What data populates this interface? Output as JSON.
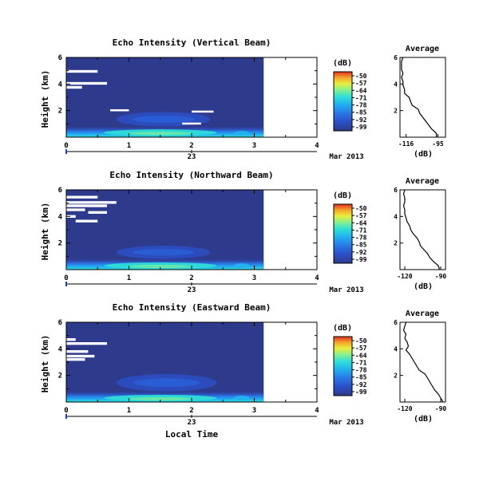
{
  "chart_data": [
    {
      "type": "heatmap",
      "title": "Echo Intensity (Vertical Beam)",
      "ylabel": "Height (km)",
      "xlim": [
        0,
        4
      ],
      "ylim": [
        0,
        6
      ],
      "x_ticks": [
        "0",
        "1",
        "2",
        "3",
        "4"
      ],
      "y_ticks": [
        "2",
        "4",
        "6"
      ],
      "date_label": "23",
      "month_label": "Mar 2013",
      "data_end_x": 3.15,
      "colorbar": {
        "unit": "(dB)",
        "levels": [
          "-50",
          "-57",
          "-64",
          "-71",
          "-78",
          "-85",
          "-92",
          "-99"
        ]
      },
      "background_value_db": -99,
      "high_echo_features": [
        {
          "x": [
            0.0,
            3.15
          ],
          "y": [
            0.0,
            0.8
          ],
          "level": "low echo boundary layer",
          "peak_x": 1.5,
          "peak_y": 0.35
        },
        {
          "x": [
            0.8,
            2.3
          ],
          "y": [
            0.8,
            1.9
          ],
          "level": "weak echo layer"
        }
      ],
      "missing_data": [
        {
          "x": [
            0.0,
            0.5
          ],
          "y": [
            4.85,
            5.05
          ]
        },
        {
          "x": [
            0.0,
            0.65
          ],
          "y": [
            3.95,
            4.15
          ]
        },
        {
          "x": [
            0.0,
            0.25
          ],
          "y": [
            3.65,
            3.85
          ]
        },
        {
          "x": [
            0.7,
            1.0
          ],
          "y": [
            1.95,
            2.1
          ]
        },
        {
          "x": [
            2.0,
            2.35
          ],
          "y": [
            1.85,
            2.0
          ]
        },
        {
          "x": [
            1.85,
            2.15
          ],
          "y": [
            0.95,
            1.1
          ]
        }
      ],
      "average_profile": {
        "title": "Average",
        "xlabel": "(dB)",
        "x_ticks": [
          "-116",
          "-95"
        ],
        "xlim": [
          -120,
          -90
        ],
        "ylim": [
          0,
          6
        ],
        "y_ticks": [
          "2",
          "4",
          "6"
        ],
        "height": [
          0.0,
          0.3,
          0.6,
          0.9,
          1.2,
          1.5,
          1.8,
          2.1,
          2.4,
          2.7,
          3.0,
          3.3,
          3.6,
          3.9,
          4.2,
          4.5,
          4.8,
          5.1,
          5.4,
          5.7,
          6.0
        ],
        "value": [
          -96,
          -96,
          -99,
          -101,
          -103,
          -105,
          -107,
          -108,
          -112,
          -113,
          -114,
          -117,
          -117,
          -118,
          -118,
          -119,
          -118,
          -119,
          -119,
          -119,
          -118
        ]
      }
    },
    {
      "type": "heatmap",
      "title": "Echo Intensity (Northward Beam)",
      "ylabel": "Height (km)",
      "xlim": [
        0,
        4
      ],
      "ylim": [
        0,
        6
      ],
      "x_ticks": [
        "0",
        "1",
        "2",
        "3",
        "4"
      ],
      "y_ticks": [
        "2",
        "4",
        "6"
      ],
      "date_label": "23",
      "month_label": "Mar 2013",
      "data_end_x": 3.15,
      "colorbar": {
        "unit": "(dB)",
        "levels": [
          "-50",
          "-57",
          "-64",
          "-71",
          "-78",
          "-85",
          "-92",
          "-99"
        ]
      },
      "background_value_db": -99,
      "high_echo_features": [
        {
          "x": [
            0.0,
            3.15
          ],
          "y": [
            0.0,
            0.8
          ],
          "level": "low echo boundary layer",
          "peak_x": 1.5,
          "peak_y": 0.3
        },
        {
          "x": [
            0.8,
            2.3
          ],
          "y": [
            0.8,
            1.8
          ],
          "level": "weak echo layer"
        }
      ],
      "missing_data": [
        {
          "x": [
            0.0,
            0.5
          ],
          "y": [
            5.35,
            5.55
          ]
        },
        {
          "x": [
            0.0,
            0.8
          ],
          "y": [
            4.95,
            5.15
          ]
        },
        {
          "x": [
            0.0,
            0.65
          ],
          "y": [
            4.7,
            4.9
          ]
        },
        {
          "x": [
            0.0,
            0.3
          ],
          "y": [
            4.4,
            4.6
          ]
        },
        {
          "x": [
            0.35,
            0.65
          ],
          "y": [
            4.2,
            4.4
          ]
        },
        {
          "x": [
            0.0,
            0.15
          ],
          "y": [
            3.9,
            4.1
          ]
        },
        {
          "x": [
            0.15,
            0.5
          ],
          "y": [
            3.55,
            3.75
          ]
        }
      ],
      "average_profile": {
        "title": "Average",
        "xlabel": "(dB)",
        "x_ticks": [
          "-120",
          "-90"
        ],
        "xlim": [
          -124,
          -86
        ],
        "ylim": [
          0,
          6
        ],
        "y_ticks": [
          "2",
          "4",
          "6"
        ],
        "height": [
          0.0,
          0.3,
          0.6,
          0.9,
          1.2,
          1.5,
          1.8,
          2.1,
          2.4,
          2.7,
          3.0,
          3.3,
          3.6,
          3.9,
          4.2,
          4.5,
          4.8,
          5.1,
          5.4,
          5.7,
          6.0
        ],
        "value": [
          -91,
          -92,
          -96,
          -99,
          -101,
          -104,
          -107,
          -108,
          -110,
          -113,
          -115,
          -116,
          -118,
          -119,
          -120,
          -120,
          -121,
          -120,
          -120,
          -121,
          -120
        ]
      }
    },
    {
      "type": "heatmap",
      "title": "Echo Intensity (Eastward Beam)",
      "ylabel": "Height (km)",
      "xlabel": "Local Time",
      "xlim": [
        0,
        4
      ],
      "ylim": [
        0,
        6
      ],
      "x_ticks": [
        "0",
        "1",
        "2",
        "3",
        "4"
      ],
      "y_ticks": [
        "2",
        "4",
        "6"
      ],
      "date_label": "23",
      "month_label": "Mar 2013",
      "data_end_x": 3.15,
      "colorbar": {
        "unit": "(dB)",
        "levels": [
          "-50",
          "-57",
          "-64",
          "-71",
          "-78",
          "-85",
          "-92",
          "-99"
        ]
      },
      "background_value_db": -99,
      "high_echo_features": [
        {
          "x": [
            0.0,
            3.15
          ],
          "y": [
            0.0,
            0.8
          ],
          "level": "low echo boundary layer",
          "peak_x": 1.5,
          "peak_y": 0.3
        },
        {
          "x": [
            0.8,
            2.4
          ],
          "y": [
            0.8,
            2.1
          ],
          "level": "weak echo layer"
        }
      ],
      "missing_data": [
        {
          "x": [
            0.0,
            0.15
          ],
          "y": [
            4.6,
            4.8
          ]
        },
        {
          "x": [
            0.0,
            0.65
          ],
          "y": [
            4.3,
            4.5
          ]
        },
        {
          "x": [
            0.0,
            0.35
          ],
          "y": [
            3.7,
            3.9
          ]
        },
        {
          "x": [
            0.0,
            0.45
          ],
          "y": [
            3.35,
            3.55
          ]
        },
        {
          "x": [
            0.0,
            0.3
          ],
          "y": [
            3.1,
            3.3
          ]
        }
      ],
      "average_profile": {
        "title": "Average",
        "xlabel": "(dB)",
        "x_ticks": [
          "-120",
          "-90"
        ],
        "xlim": [
          -124,
          -86
        ],
        "ylim": [
          0,
          6
        ],
        "y_ticks": [
          "2",
          "4",
          "6"
        ],
        "height": [
          0.0,
          0.3,
          0.6,
          0.9,
          1.2,
          1.5,
          1.8,
          2.1,
          2.4,
          2.7,
          3.0,
          3.3,
          3.6,
          3.9,
          4.2,
          4.5,
          4.8,
          5.1,
          5.4,
          5.7,
          6.0
        ],
        "value": [
          -88,
          -90,
          -92,
          -95,
          -97,
          -99,
          -101,
          -103,
          -108,
          -110,
          -112,
          -114,
          -116,
          -119,
          -117,
          -118,
          -120,
          -119,
          -121,
          -120,
          -119
        ]
      }
    }
  ],
  "colors": {
    "background_field": "#2e3a8c",
    "colormap": [
      "#2e3a8c",
      "#2b4fc6",
      "#2a78e6",
      "#22b2f0",
      "#2fe0d6",
      "#8ef08a",
      "#e8ee3c",
      "#f6a52a",
      "#ee4a22",
      "#c81e1e"
    ]
  }
}
